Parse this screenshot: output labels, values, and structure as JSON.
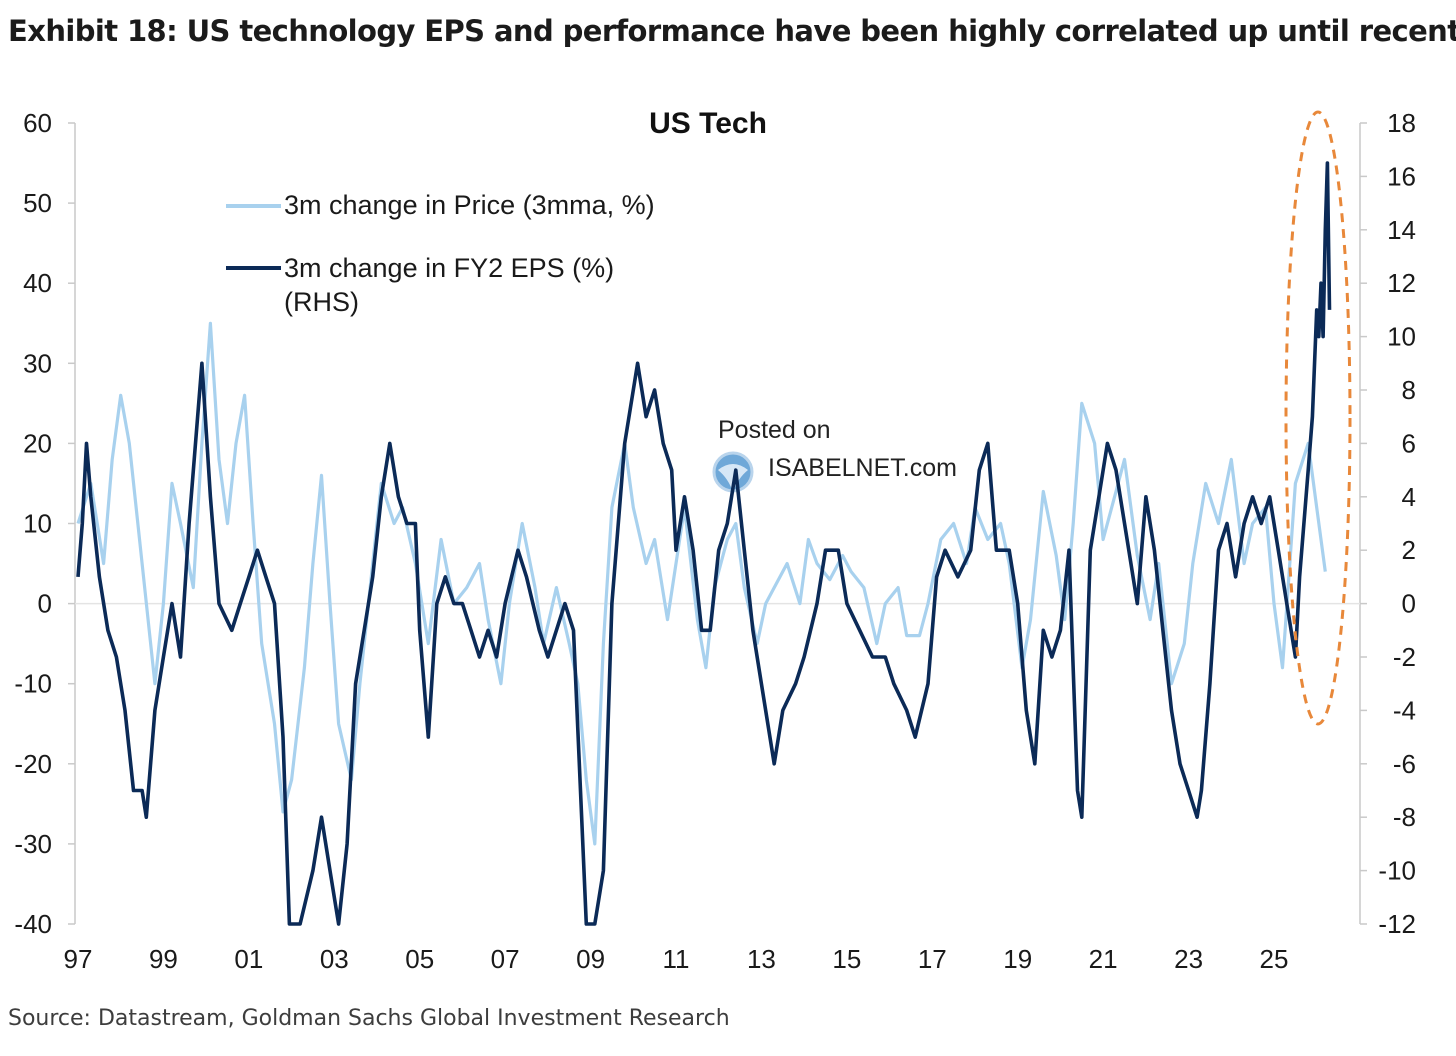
{
  "exhibit_title": "Exhibit 18: US technology EPS and performance have been highly correlated up until recently",
  "source": "Source: Datastream, Goldman Sachs Global Investment Research",
  "watermark": {
    "line1": "Posted on",
    "line2": "ISABELNET.com"
  },
  "colors": {
    "price": "#a8d1ee",
    "eps": "#0b2a57",
    "highlight": "#e8883a",
    "axis": "#c9c9c9"
  },
  "chart_data": {
    "type": "line",
    "title": "US Tech",
    "x_tick_labels": [
      "97",
      "99",
      "01",
      "03",
      "05",
      "07",
      "09",
      "11",
      "13",
      "15",
      "17",
      "19",
      "21",
      "23",
      "25"
    ],
    "x_tick_years": [
      1997,
      1999,
      2001,
      2003,
      2005,
      2007,
      2009,
      2011,
      2013,
      2015,
      2017,
      2019,
      2021,
      2023,
      2025
    ],
    "xlim": [
      1997,
      2026.3
    ],
    "left_axis": {
      "ylim": [
        -40,
        60
      ],
      "ticks": [
        60,
        50,
        40,
        30,
        20,
        10,
        0,
        -10,
        -20,
        -30,
        -40
      ]
    },
    "right_axis": {
      "ylim": [
        -12,
        18
      ],
      "ticks": [
        18,
        16,
        14,
        12,
        10,
        8,
        6,
        4,
        2,
        0,
        -2,
        -4,
        -6,
        -8,
        -10,
        -12
      ]
    },
    "series": [
      {
        "name": "3m change in Price (3mma, %)",
        "axis": "left",
        "points": [
          [
            1997.0,
            10
          ],
          [
            1997.3,
            15
          ],
          [
            1997.6,
            5
          ],
          [
            1997.8,
            18
          ],
          [
            1998.0,
            26
          ],
          [
            1998.2,
            20
          ],
          [
            1998.5,
            5
          ],
          [
            1998.8,
            -10
          ],
          [
            1999.0,
            0
          ],
          [
            1999.2,
            15
          ],
          [
            1999.4,
            10
          ],
          [
            1999.7,
            2
          ],
          [
            1999.9,
            20
          ],
          [
            2000.1,
            35
          ],
          [
            2000.3,
            18
          ],
          [
            2000.5,
            10
          ],
          [
            2000.7,
            20
          ],
          [
            2000.9,
            26
          ],
          [
            2001.1,
            10
          ],
          [
            2001.3,
            -5
          ],
          [
            2001.6,
            -15
          ],
          [
            2001.8,
            -26
          ],
          [
            2002.0,
            -22
          ],
          [
            2002.3,
            -8
          ],
          [
            2002.5,
            5
          ],
          [
            2002.7,
            16
          ],
          [
            2002.9,
            0
          ],
          [
            2003.1,
            -15
          ],
          [
            2003.4,
            -22
          ],
          [
            2003.6,
            -10
          ],
          [
            2003.9,
            5
          ],
          [
            2004.1,
            15
          ],
          [
            2004.4,
            10
          ],
          [
            2004.6,
            12
          ],
          [
            2004.9,
            5
          ],
          [
            2005.2,
            -5
          ],
          [
            2005.5,
            8
          ],
          [
            2005.8,
            0
          ],
          [
            2006.1,
            2
          ],
          [
            2006.4,
            5
          ],
          [
            2006.6,
            -2
          ],
          [
            2006.9,
            -10
          ],
          [
            2007.1,
            0
          ],
          [
            2007.4,
            10
          ],
          [
            2007.7,
            2
          ],
          [
            2007.9,
            -5
          ],
          [
            2008.2,
            2
          ],
          [
            2008.5,
            -5
          ],
          [
            2008.7,
            -10
          ],
          [
            2008.9,
            -22
          ],
          [
            2009.1,
            -30
          ],
          [
            2009.3,
            -5
          ],
          [
            2009.5,
            12
          ],
          [
            2009.8,
            20
          ],
          [
            2010.0,
            12
          ],
          [
            2010.3,
            5
          ],
          [
            2010.5,
            8
          ],
          [
            2010.8,
            -2
          ],
          [
            2011.0,
            5
          ],
          [
            2011.2,
            12
          ],
          [
            2011.5,
            -2
          ],
          [
            2011.7,
            -8
          ],
          [
            2011.9,
            2
          ],
          [
            2012.2,
            8
          ],
          [
            2012.4,
            10
          ],
          [
            2012.6,
            2
          ],
          [
            2012.9,
            -5
          ],
          [
            2013.1,
            0
          ],
          [
            2013.3,
            2
          ],
          [
            2013.6,
            5
          ],
          [
            2013.9,
            0
          ],
          [
            2014.1,
            8
          ],
          [
            2014.3,
            5
          ],
          [
            2014.6,
            3
          ],
          [
            2014.9,
            6
          ],
          [
            2015.1,
            4
          ],
          [
            2015.4,
            2
          ],
          [
            2015.7,
            -5
          ],
          [
            2015.9,
            0
          ],
          [
            2016.2,
            2
          ],
          [
            2016.4,
            -4
          ],
          [
            2016.7,
            -4
          ],
          [
            2016.9,
            0
          ],
          [
            2017.2,
            8
          ],
          [
            2017.5,
            10
          ],
          [
            2017.8,
            5
          ],
          [
            2018.0,
            12
          ],
          [
            2018.3,
            8
          ],
          [
            2018.6,
            10
          ],
          [
            2018.8,
            5
          ],
          [
            2019.1,
            -8
          ],
          [
            2019.3,
            -2
          ],
          [
            2019.6,
            14
          ],
          [
            2019.9,
            6
          ],
          [
            2020.1,
            -2
          ],
          [
            2020.3,
            10
          ],
          [
            2020.5,
            25
          ],
          [
            2020.8,
            20
          ],
          [
            2021.0,
            8
          ],
          [
            2021.3,
            14
          ],
          [
            2021.5,
            18
          ],
          [
            2021.8,
            6
          ],
          [
            2022.1,
            -2
          ],
          [
            2022.3,
            5
          ],
          [
            2022.6,
            -10
          ],
          [
            2022.9,
            -5
          ],
          [
            2023.1,
            5
          ],
          [
            2023.4,
            15
          ],
          [
            2023.7,
            10
          ],
          [
            2024.0,
            18
          ],
          [
            2024.3,
            5
          ],
          [
            2024.5,
            10
          ],
          [
            2024.8,
            12
          ],
          [
            2025.0,
            0
          ],
          [
            2025.2,
            -8
          ],
          [
            2025.5,
            15
          ],
          [
            2025.8,
            20
          ],
          [
            2026.0,
            12
          ],
          [
            2026.2,
            4
          ]
        ]
      },
      {
        "name": "3m change in FY2 EPS (%) (RHS)",
        "axis": "right",
        "points": [
          [
            1997.0,
            1
          ],
          [
            1997.1,
            3
          ],
          [
            1997.2,
            6
          ],
          [
            1997.3,
            4
          ],
          [
            1997.5,
            1
          ],
          [
            1997.7,
            -1
          ],
          [
            1997.9,
            -2
          ],
          [
            1998.1,
            -4
          ],
          [
            1998.3,
            -7
          ],
          [
            1998.5,
            -7
          ],
          [
            1998.6,
            -8
          ],
          [
            1998.8,
            -4
          ],
          [
            1999.0,
            -2
          ],
          [
            1999.2,
            0
          ],
          [
            1999.4,
            -2
          ],
          [
            1999.6,
            3
          ],
          [
            1999.9,
            9
          ],
          [
            2000.1,
            4
          ],
          [
            2000.3,
            0
          ],
          [
            2000.6,
            -1
          ],
          [
            2000.8,
            0
          ],
          [
            2001.0,
            1
          ],
          [
            2001.2,
            2
          ],
          [
            2001.4,
            1
          ],
          [
            2001.6,
            0
          ],
          [
            2001.8,
            -5
          ],
          [
            2001.95,
            -12
          ],
          [
            2002.2,
            -12
          ],
          [
            2002.5,
            -10
          ],
          [
            2002.7,
            -8
          ],
          [
            2002.9,
            -10
          ],
          [
            2003.1,
            -12
          ],
          [
            2003.3,
            -9
          ],
          [
            2003.5,
            -3
          ],
          [
            2003.7,
            -1
          ],
          [
            2003.9,
            1
          ],
          [
            2004.1,
            4
          ],
          [
            2004.3,
            6
          ],
          [
            2004.5,
            4
          ],
          [
            2004.7,
            3
          ],
          [
            2004.9,
            3
          ],
          [
            2005.0,
            -1
          ],
          [
            2005.2,
            -5
          ],
          [
            2005.4,
            0
          ],
          [
            2005.6,
            1
          ],
          [
            2005.8,
            0
          ],
          [
            2006.0,
            0
          ],
          [
            2006.2,
            -1
          ],
          [
            2006.4,
            -2
          ],
          [
            2006.6,
            -1
          ],
          [
            2006.8,
            -2
          ],
          [
            2007.0,
            0
          ],
          [
            2007.3,
            2
          ],
          [
            2007.5,
            1
          ],
          [
            2007.8,
            -1
          ],
          [
            2008.0,
            -2
          ],
          [
            2008.2,
            -1
          ],
          [
            2008.4,
            0
          ],
          [
            2008.6,
            -1
          ],
          [
            2008.9,
            -12
          ],
          [
            2009.1,
            -12
          ],
          [
            2009.3,
            -10
          ],
          [
            2009.5,
            0
          ],
          [
            2009.8,
            6
          ],
          [
            2010.1,
            9
          ],
          [
            2010.3,
            7
          ],
          [
            2010.5,
            8
          ],
          [
            2010.7,
            6
          ],
          [
            2010.9,
            5
          ],
          [
            2011.0,
            2
          ],
          [
            2011.2,
            4
          ],
          [
            2011.4,
            2
          ],
          [
            2011.6,
            -1
          ],
          [
            2011.8,
            -1
          ],
          [
            2012.0,
            2
          ],
          [
            2012.2,
            3
          ],
          [
            2012.4,
            5
          ],
          [
            2012.6,
            2
          ],
          [
            2012.8,
            -1
          ],
          [
            2013.0,
            -3
          ],
          [
            2013.3,
            -6
          ],
          [
            2013.5,
            -4
          ],
          [
            2013.8,
            -3
          ],
          [
            2014.0,
            -2
          ],
          [
            2014.3,
            0
          ],
          [
            2014.5,
            2
          ],
          [
            2014.8,
            2
          ],
          [
            2015.0,
            0
          ],
          [
            2015.3,
            -1
          ],
          [
            2015.6,
            -2
          ],
          [
            2015.9,
            -2
          ],
          [
            2016.1,
            -3
          ],
          [
            2016.4,
            -4
          ],
          [
            2016.6,
            -5
          ],
          [
            2016.9,
            -3
          ],
          [
            2017.1,
            1
          ],
          [
            2017.3,
            2
          ],
          [
            2017.6,
            1
          ],
          [
            2017.9,
            2
          ],
          [
            2018.1,
            5
          ],
          [
            2018.3,
            6
          ],
          [
            2018.5,
            2
          ],
          [
            2018.8,
            2
          ],
          [
            2019.0,
            0
          ],
          [
            2019.2,
            -4
          ],
          [
            2019.4,
            -6
          ],
          [
            2019.6,
            -1
          ],
          [
            2019.8,
            -2
          ],
          [
            2020.0,
            -1
          ],
          [
            2020.2,
            2
          ],
          [
            2020.4,
            -7
          ],
          [
            2020.5,
            -8
          ],
          [
            2020.7,
            2
          ],
          [
            2020.9,
            4
          ],
          [
            2021.1,
            6
          ],
          [
            2021.3,
            5
          ],
          [
            2021.6,
            2
          ],
          [
            2021.8,
            0
          ],
          [
            2022.0,
            4
          ],
          [
            2022.2,
            2
          ],
          [
            2022.4,
            -1
          ],
          [
            2022.6,
            -4
          ],
          [
            2022.8,
            -6
          ],
          [
            2023.0,
            -7
          ],
          [
            2023.2,
            -8
          ],
          [
            2023.3,
            -7
          ],
          [
            2023.5,
            -3
          ],
          [
            2023.7,
            2
          ],
          [
            2023.9,
            3
          ],
          [
            2024.1,
            1
          ],
          [
            2024.3,
            3
          ],
          [
            2024.5,
            4
          ],
          [
            2024.7,
            3
          ],
          [
            2024.9,
            4
          ],
          [
            2025.1,
            2
          ],
          [
            2025.3,
            0
          ],
          [
            2025.5,
            -2
          ],
          [
            2025.6,
            1
          ],
          [
            2025.8,
            5
          ],
          [
            2025.9,
            7
          ],
          [
            2026.0,
            11
          ],
          [
            2026.05,
            10
          ],
          [
            2026.1,
            12
          ],
          [
            2026.15,
            10
          ],
          [
            2026.2,
            14
          ],
          [
            2026.25,
            16.5
          ],
          [
            2026.3,
            11
          ]
        ]
      }
    ],
    "annotations": [
      "Orange dashed ellipse highlighting the recent EPS surge"
    ]
  }
}
